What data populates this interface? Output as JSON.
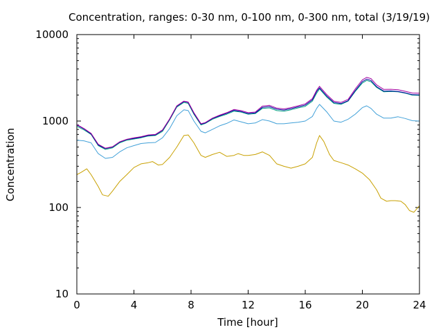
{
  "chart_data": {
    "type": "line",
    "title": "Concentration, ranges: 0-30 nm, 0-100 nm, 0-300 nm, total (3/19/19)",
    "xlabel": "Time [hour]",
    "ylabel": "Concentration",
    "xlim": [
      0,
      24
    ],
    "ylim": [
      10,
      10000
    ],
    "yscale": "log",
    "grid": false,
    "legend": "none",
    "x_ticks": [
      "0",
      "4",
      "8",
      "12",
      "16",
      "20",
      "24"
    ],
    "y_ticks": [
      "10",
      "100",
      "1000",
      "10000"
    ],
    "series": [
      {
        "color": "#c8a000",
        "x": [
          0,
          0.3,
          0.7,
          1.0,
          1.5,
          1.8,
          2.2,
          2.5,
          3.0,
          3.5,
          4.0,
          4.5,
          5.0,
          5.3,
          5.7,
          6.0,
          6.5,
          7.0,
          7.5,
          7.8,
          8.2,
          8.7,
          9.0,
          9.5,
          10.0,
          10.5,
          11.0,
          11.3,
          11.7,
          12.0,
          12.5,
          13.0,
          13.5,
          14.0,
          14.5,
          15.0,
          15.5,
          16.0,
          16.5,
          16.8,
          17.0,
          17.3,
          17.7,
          18.0,
          18.5,
          19.0,
          19.5,
          20.0,
          20.5,
          21.0,
          21.3,
          21.7,
          22.0,
          22.3,
          22.7,
          23.0,
          23.3,
          23.6,
          24.0
        ],
        "y": [
          240,
          255,
          280,
          240,
          175,
          140,
          135,
          155,
          200,
          240,
          290,
          320,
          330,
          340,
          310,
          315,
          380,
          500,
          680,
          690,
          560,
          400,
          380,
          410,
          435,
          390,
          400,
          420,
          400,
          400,
          410,
          440,
          400,
          320,
          300,
          285,
          300,
          320,
          380,
          560,
          680,
          580,
          410,
          350,
          330,
          310,
          280,
          250,
          210,
          160,
          128,
          118,
          120,
          120,
          118,
          108,
          92,
          88,
          105
        ]
      },
      {
        "color": "#40a0d8",
        "x": [
          0,
          0.5,
          1.0,
          1.5,
          2.0,
          2.5,
          3.0,
          3.5,
          4.0,
          4.5,
          5.0,
          5.5,
          6.0,
          6.5,
          7.0,
          7.5,
          7.8,
          8.2,
          8.7,
          9.0,
          9.5,
          10.0,
          10.5,
          11.0,
          11.5,
          12.0,
          12.5,
          13.0,
          13.5,
          14.0,
          14.5,
          15.0,
          15.5,
          16.0,
          16.5,
          16.8,
          17.0,
          17.5,
          18.0,
          18.5,
          19.0,
          19.5,
          20.0,
          20.3,
          20.6,
          21.0,
          21.5,
          22.0,
          22.5,
          23.0,
          23.5,
          24.0
        ],
        "y": [
          600,
          590,
          560,
          420,
          370,
          380,
          440,
          490,
          520,
          550,
          560,
          565,
          640,
          820,
          1150,
          1350,
          1320,
          1000,
          760,
          730,
          800,
          880,
          940,
          1030,
          980,
          930,
          950,
          1040,
          1000,
          930,
          930,
          950,
          970,
          1000,
          1130,
          1400,
          1560,
          1280,
          1000,
          970,
          1050,
          1200,
          1430,
          1500,
          1400,
          1200,
          1080,
          1080,
          1120,
          1070,
          1010,
          1000
        ]
      },
      {
        "color": "#00a080",
        "x": [
          0,
          0.5,
          1.0,
          1.5,
          2.0,
          2.5,
          3.0,
          3.5,
          4.0,
          4.5,
          5.0,
          5.5,
          6.0,
          6.5,
          7.0,
          7.5,
          7.8,
          8.2,
          8.7,
          9.0,
          9.5,
          10.0,
          10.5,
          11.0,
          11.5,
          12.0,
          12.5,
          13.0,
          13.5,
          14.0,
          14.5,
          15.0,
          15.5,
          16.0,
          16.5,
          16.8,
          17.0,
          17.5,
          18.0,
          18.5,
          19.0,
          19.5,
          20.0,
          20.3,
          20.6,
          21.0,
          21.5,
          22.0,
          22.5,
          23.0,
          23.5,
          24.0
        ],
        "y": [
          870,
          790,
          700,
          520,
          470,
          490,
          560,
          600,
          620,
          640,
          670,
          680,
          760,
          1030,
          1450,
          1640,
          1600,
          1200,
          900,
          940,
          1050,
          1130,
          1200,
          1300,
          1270,
          1200,
          1220,
          1400,
          1420,
          1320,
          1300,
          1350,
          1420,
          1480,
          1700,
          2100,
          2350,
          1900,
          1600,
          1560,
          1700,
          2200,
          2750,
          2950,
          2850,
          2450,
          2180,
          2200,
          2180,
          2100,
          1990,
          1980
        ]
      },
      {
        "color": "#0000a0",
        "x": [
          0,
          0.5,
          1.0,
          1.5,
          2.0,
          2.5,
          3.0,
          3.5,
          4.0,
          4.5,
          5.0,
          5.5,
          6.0,
          6.5,
          7.0,
          7.5,
          7.8,
          8.2,
          8.7,
          9.0,
          9.5,
          10.0,
          10.5,
          11.0,
          11.5,
          12.0,
          12.5,
          13.0,
          13.5,
          14.0,
          14.5,
          15.0,
          15.5,
          16.0,
          16.5,
          16.8,
          17.0,
          17.5,
          18.0,
          18.5,
          19.0,
          19.5,
          20.0,
          20.3,
          20.6,
          21.0,
          21.5,
          22.0,
          22.5,
          23.0,
          23.5,
          24.0
        ],
        "y": [
          900,
          810,
          710,
          530,
          480,
          500,
          570,
          610,
          630,
          650,
          680,
          690,
          780,
          1050,
          1480,
          1680,
          1640,
          1230,
          920,
          950,
          1070,
          1150,
          1230,
          1330,
          1290,
          1220,
          1240,
          1440,
          1470,
          1370,
          1340,
          1390,
          1460,
          1530,
          1760,
          2200,
          2420,
          1950,
          1640,
          1590,
          1720,
          2250,
          2850,
          3050,
          2950,
          2500,
          2220,
          2230,
          2200,
          2120,
          2020,
          2010
        ]
      },
      {
        "color": "#a000a0",
        "x": [
          0,
          0.5,
          1.0,
          1.5,
          2.0,
          2.5,
          3.0,
          3.5,
          4.0,
          4.5,
          5.0,
          5.5,
          6.0,
          6.5,
          7.0,
          7.5,
          7.8,
          8.2,
          8.7,
          9.0,
          9.5,
          10.0,
          10.5,
          11.0,
          11.5,
          12.0,
          12.5,
          13.0,
          13.5,
          14.0,
          14.5,
          15.0,
          15.5,
          16.0,
          16.5,
          16.8,
          17.0,
          17.5,
          18.0,
          18.5,
          19.0,
          19.5,
          20.0,
          20.3,
          20.6,
          21.0,
          21.5,
          22.0,
          22.5,
          23.0,
          23.5,
          24.0
        ],
        "y": [
          910,
          820,
          720,
          540,
          485,
          505,
          575,
          615,
          640,
          660,
          690,
          700,
          790,
          1060,
          1500,
          1700,
          1660,
          1250,
          930,
          960,
          1080,
          1170,
          1250,
          1360,
          1320,
          1250,
          1270,
          1490,
          1520,
          1410,
          1380,
          1430,
          1500,
          1580,
          1820,
          2280,
          2520,
          2030,
          1700,
          1640,
          1780,
          2350,
          3000,
          3200,
          3100,
          2620,
          2320,
          2330,
          2300,
          2210,
          2110,
          2100
        ]
      }
    ]
  }
}
